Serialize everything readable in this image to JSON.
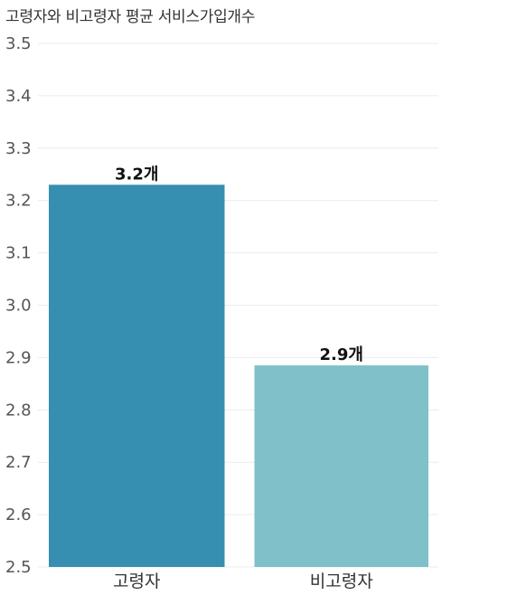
{
  "chart_data": {
    "type": "bar",
    "title": "고령자와 비고령자 평균 서비스가입개수",
    "categories": [
      "고령자",
      "비고령자"
    ],
    "values": [
      3.23,
      2.885
    ],
    "data_labels": [
      "3.2개",
      "2.9개"
    ],
    "bar_colors": [
      "#368fb0",
      "#80c0c9"
    ],
    "ylim": [
      2.5,
      3.5
    ],
    "yticks": [
      2.5,
      2.6,
      2.7,
      2.8,
      2.9,
      3.0,
      3.1,
      3.2,
      3.3,
      3.4,
      3.5
    ],
    "ytick_labels": [
      "2.5",
      "2.6",
      "2.7",
      "2.8",
      "2.9",
      "3.0",
      "3.1",
      "3.2",
      "3.3",
      "3.4",
      "3.5"
    ],
    "grid": true,
    "xlabel": "",
    "ylabel": ""
  }
}
